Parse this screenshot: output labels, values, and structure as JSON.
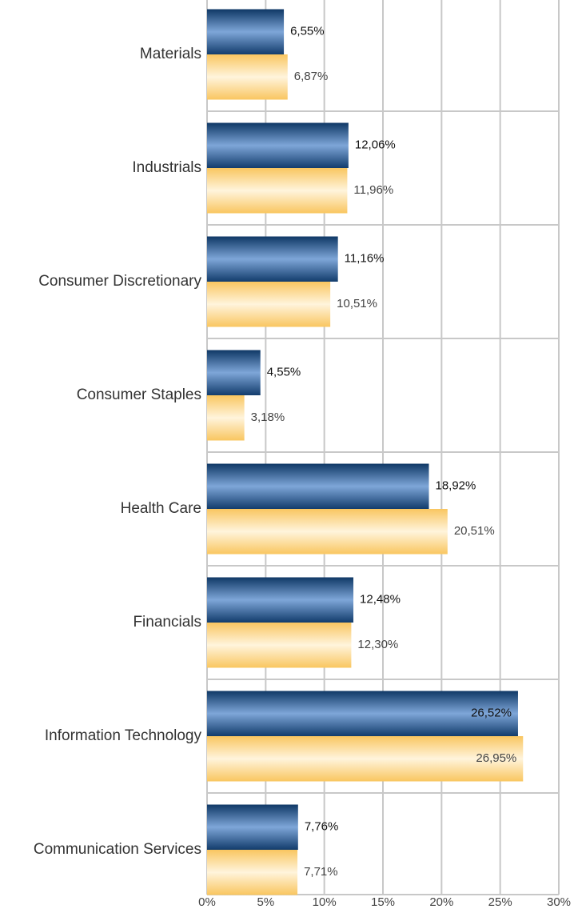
{
  "chart_data": {
    "type": "hbar",
    "categories": [
      "Materials",
      "Industrials",
      "Consumer Discretionary",
      "Consumer Staples",
      "Health Care",
      "Financials",
      "Information Technology",
      "Communication Services"
    ],
    "series": [
      {
        "color": "#1f4e85",
        "values": [
          6.55,
          12.06,
          11.16,
          4.55,
          18.92,
          12.48,
          26.52,
          7.76
        ],
        "value_labels": [
          "6,55%",
          "12,06%",
          "11,16%",
          "4,55%",
          "18,92%",
          "12,48%",
          "26,52%",
          "7,76%"
        ]
      },
      {
        "color": "#fcd27a",
        "values": [
          6.87,
          11.96,
          10.51,
          3.18,
          20.51,
          12.3,
          26.95,
          7.71
        ],
        "value_labels": [
          "6,87%",
          "11,96%",
          "10,51%",
          "3,18%",
          "20,51%",
          "12,30%",
          "26,95%",
          "7,71%"
        ]
      }
    ],
    "xlim": [
      0,
      30
    ],
    "xticks": [
      {
        "value": 0,
        "label": "0%"
      },
      {
        "value": 5,
        "label": "5%"
      },
      {
        "value": 10,
        "label": "10%"
      },
      {
        "value": 15,
        "label": "15%"
      },
      {
        "value": 20,
        "label": "20%"
      },
      {
        "value": 25,
        "label": "25%"
      },
      {
        "value": 30,
        "label": "30%"
      }
    ],
    "grid": true
  }
}
